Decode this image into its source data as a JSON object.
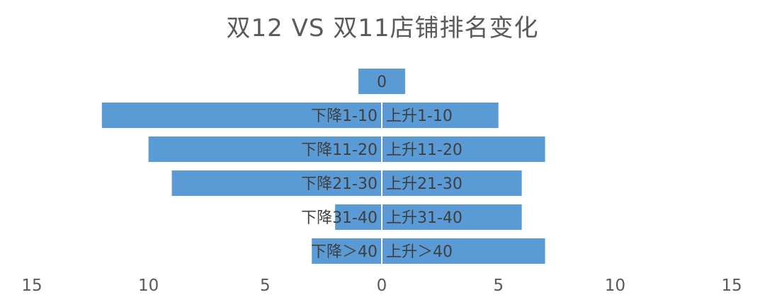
{
  "chart_data": {
    "type": "bar",
    "orientation": "horizontal",
    "title": "双12 VS 双11店铺排名变化",
    "xlim": [
      -15,
      15
    ],
    "x_ticks": [
      "15",
      "10",
      "5",
      "0",
      "5",
      "10",
      "15"
    ],
    "x_tick_values": [
      -15,
      -10,
      -5,
      0,
      5,
      10,
      15
    ],
    "grid": false,
    "rows": [
      {
        "left_label": "",
        "right_label": "",
        "center_label": "0",
        "left_value": -1,
        "right_value": 1
      },
      {
        "left_label": "下降1-10",
        "right_label": "上升1-10",
        "left_value": -12,
        "right_value": 5
      },
      {
        "left_label": "下降11-20",
        "right_label": "上升11-20",
        "left_value": -10,
        "right_value": 7
      },
      {
        "left_label": "下降21-30",
        "right_label": "上升21-30",
        "left_value": -9,
        "right_value": 6
      },
      {
        "left_label": "下降31-40",
        "right_label": "上升31-40",
        "left_value": -2,
        "right_value": 6
      },
      {
        "left_label": "下降＞40",
        "right_label": "上升＞40",
        "left_value": -3,
        "right_value": 7
      }
    ],
    "bar_color": "#5b9bd5"
  }
}
